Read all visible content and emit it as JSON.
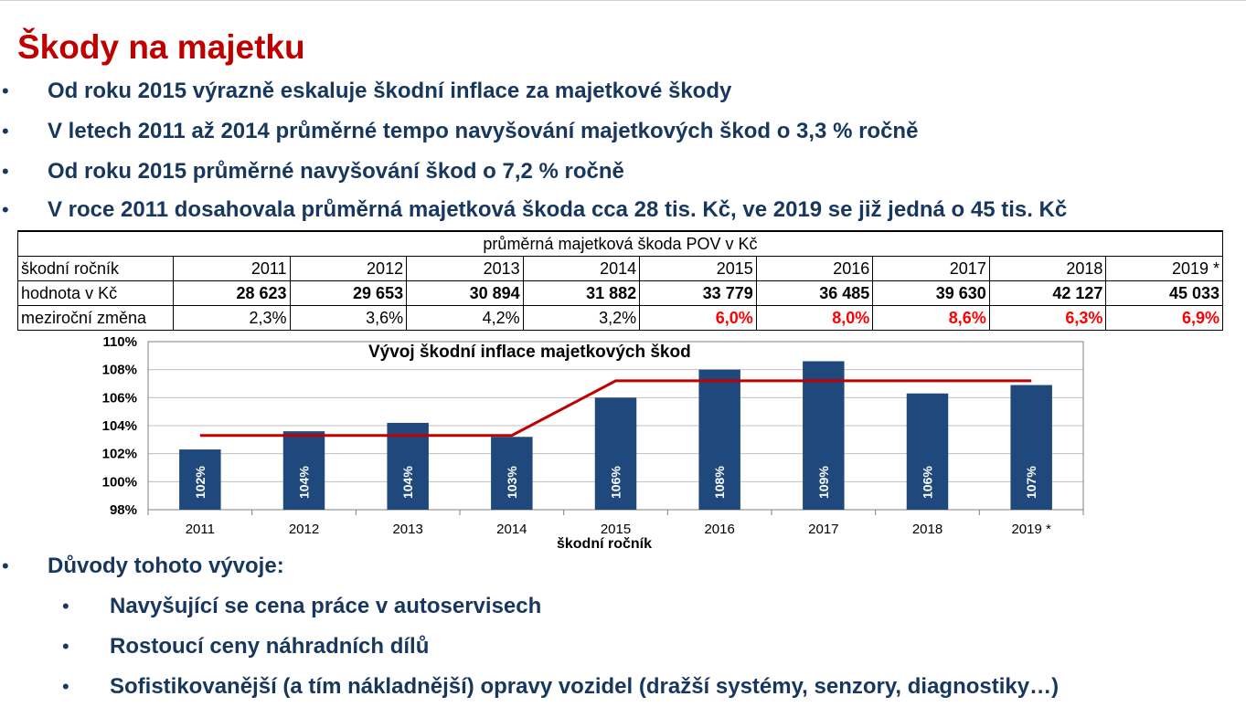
{
  "slide": {
    "title": "Škody na majetku",
    "bullets": [
      {
        "marker": "•",
        "text": "Od roku 2015 výrazně eskaluje škodní inflace za majetkové škody"
      },
      {
        "marker": "•",
        "text": "V letech 2011 až 2014 průměrné tempo navyšování majetkových škod o 3,3 % ročně"
      },
      {
        "marker": "•",
        "text": "Od roku 2015 průměrné navyšování škod o 7,2 % ročně"
      },
      {
        "marker": "•",
        "text": "V roce 2011 dosahovala průměrná majetková škoda cca 28 tis. Kč, ve 2019 se již jedná o 45 tis. Kč"
      }
    ],
    "reasons": {
      "marker": "•",
      "heading": "Důvody tohoto vývoje:",
      "items": [
        {
          "marker": "•",
          "text": "Navyšující se cena práce v autoservisech"
        },
        {
          "marker": "•",
          "text": "Rostoucí ceny náhradních dílů"
        },
        {
          "marker": "•",
          "text": "Sofistikovanější (a tím nákladnější) opravy vozidel (dražší systémy, senzory, diagnostiky…)"
        }
      ]
    }
  },
  "table": {
    "caption": "průměrná majetková škoda POV v Kč",
    "rows": {
      "year": {
        "label": "škodní ročník",
        "cells": [
          "2011",
          "2012",
          "2013",
          "2014",
          "2015",
          "2016",
          "2017",
          "2018",
          "2019 *"
        ]
      },
      "value": {
        "label": "hodnota v Kč",
        "cells": [
          "28 623",
          "29 653",
          "30 894",
          "31 882",
          "33 779",
          "36 485",
          "39 630",
          "42 127",
          "45 033"
        ]
      },
      "change": {
        "label": "meziroční změna",
        "cells": [
          "2,3%",
          "3,6%",
          "4,2%",
          "3,2%",
          "6,0%",
          "8,0%",
          "8,6%",
          "6,3%",
          "6,9%"
        ]
      }
    },
    "highlight_color": "#ff0000"
  },
  "chart_data": {
    "type": "bar",
    "title": "Vývoj škodní inflace majetkových škod",
    "xlabel": "škodní ročník",
    "ylabel": "",
    "categories": [
      "2011",
      "2012",
      "2013",
      "2014",
      "2015",
      "2016",
      "2017",
      "2018",
      "2019 *"
    ],
    "values": [
      102.3,
      103.6,
      104.2,
      103.2,
      106.0,
      108.0,
      108.6,
      106.3,
      106.9
    ],
    "bar_labels": [
      "102%",
      "104%",
      "104%",
      "103%",
      "106%",
      "108%",
      "109%",
      "106%",
      "107%"
    ],
    "average_line": [
      103.3,
      103.3,
      103.3,
      103.3,
      107.2,
      107.2,
      107.2,
      107.2,
      107.2
    ],
    "ylim": [
      98,
      110
    ],
    "yticks": [
      98,
      100,
      102,
      104,
      106,
      108,
      110
    ],
    "ytick_labels": [
      "98%",
      "100%",
      "102%",
      "104%",
      "106%",
      "108%",
      "110%"
    ],
    "grid": true,
    "colors": {
      "bar": "#1f497d",
      "average_line": "#c00000",
      "grid": "#c0c0c0"
    }
  }
}
